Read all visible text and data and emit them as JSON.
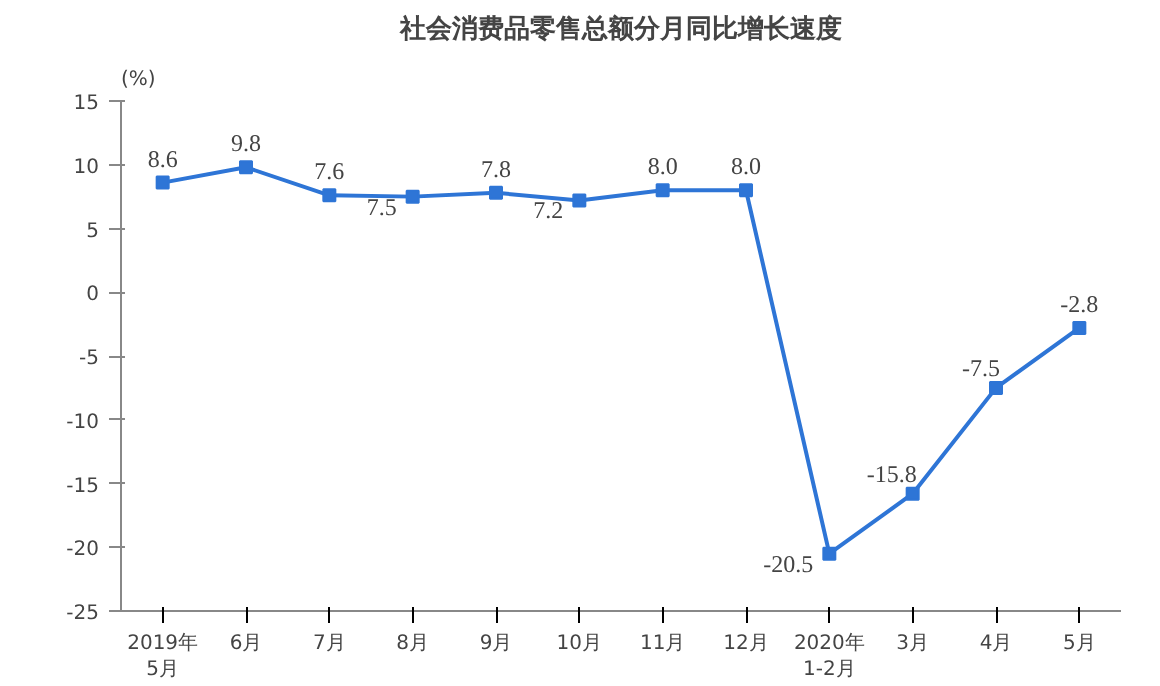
{
  "chart_data": {
    "type": "line",
    "title": "社会消费品零售总额分月同比增长速度",
    "ylabel": "(%)",
    "categories": [
      "2019年\n5月",
      "6月",
      "7月",
      "8月",
      "9月",
      "10月",
      "11月",
      "12月",
      "2020年\n1-2月",
      "3月",
      "4月",
      "5月"
    ],
    "series": [
      {
        "color": "#2e75d6",
        "values": [
          8.6,
          9.8,
          7.6,
          7.5,
          7.8,
          7.2,
          8.0,
          8.0,
          -20.5,
          -15.8,
          -7.5,
          -2.8
        ],
        "value_labels": [
          "8.6",
          "9.8",
          "7.6",
          "7.5",
          "7.8",
          "7.2",
          "8.0",
          "8.0",
          "-20.5",
          "-15.8",
          "-7.5",
          "-2.8"
        ]
      }
    ],
    "ylim": [
      -25,
      15
    ],
    "yticks": [
      -25,
      -20,
      -15,
      -10,
      -5,
      0,
      5,
      10,
      15
    ],
    "marker": "square",
    "grid": false
  }
}
